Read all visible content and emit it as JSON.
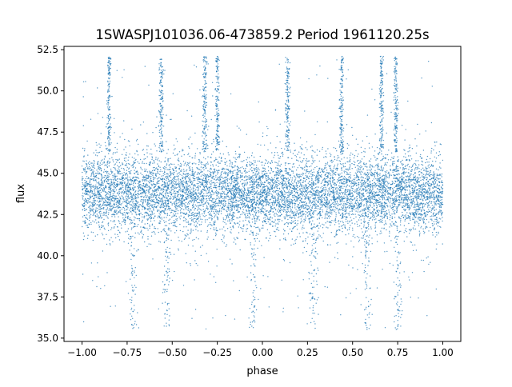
{
  "chart_data": {
    "type": "scatter",
    "title": "1SWASPJ101036.06-473859.2 Period 1961120.25s",
    "xlabel": "phase",
    "ylabel": "flux",
    "xlim": [
      -1.1,
      1.1
    ],
    "ylim": [
      34.8,
      52.7
    ],
    "xticks": [
      -1.0,
      -0.75,
      -0.5,
      -0.25,
      0.0,
      0.25,
      0.5,
      0.75,
      1.0
    ],
    "xtick_labels": [
      "−1.00",
      "−0.75",
      "−0.50",
      "−0.25",
      "0.00",
      "0.25",
      "0.50",
      "0.75",
      "1.00"
    ],
    "yticks": [
      35.0,
      37.5,
      40.0,
      42.5,
      45.0,
      47.5,
      50.0,
      52.5
    ],
    "ytick_labels": [
      "35.0",
      "37.5",
      "40.0",
      "42.5",
      "45.0",
      "47.5",
      "50.0",
      "52.5"
    ],
    "grid": false,
    "marker_color": "#1f77b4",
    "summary": {
      "phase_range": [
        -1.0,
        1.0
      ],
      "core_flux_mean": 43.8,
      "core_flux_band": [
        41.8,
        46.3
      ],
      "flux_max": 52.1,
      "flux_min": 35.5,
      "high_flux_spike_phases": [
        -0.85,
        -0.56,
        -0.32,
        -0.25,
        0.14,
        0.44,
        0.66,
        0.74
      ],
      "low_flux_tail_phases": [
        -0.72,
        -0.53,
        -0.05,
        0.28,
        0.58,
        0.75
      ]
    }
  }
}
